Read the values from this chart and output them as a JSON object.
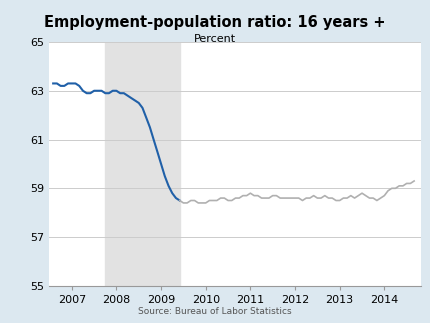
{
  "title": "Employment-population ratio: 16 years +",
  "subtitle": "Percent",
  "source": "Source: Bureau of Labor Statistics",
  "background_color": "#dce8f0",
  "plot_background_color": "#ffffff",
  "recession_start": 2007.75,
  "recession_end": 2009.417,
  "recession_color": "#e2e2e2",
  "ylim": [
    55,
    65
  ],
  "yticks": [
    55,
    57,
    59,
    61,
    63,
    65
  ],
  "xlim": [
    2006.5,
    2014.83
  ],
  "xticks": [
    2007,
    2008,
    2009,
    2010,
    2011,
    2012,
    2013,
    2014
  ],
  "blue_line_color": "#2060a8",
  "gray_line_color": "#b0b0b0",
  "blue_data": {
    "x": [
      2006.583,
      2006.667,
      2006.75,
      2006.833,
      2006.917,
      2007.0,
      2007.083,
      2007.167,
      2007.25,
      2007.333,
      2007.417,
      2007.5,
      2007.583,
      2007.667,
      2007.75,
      2007.833,
      2007.917,
      2008.0,
      2008.083,
      2008.167,
      2008.25,
      2008.333,
      2008.417,
      2008.5,
      2008.583,
      2008.667,
      2008.75,
      2008.833,
      2008.917,
      2009.0,
      2009.083,
      2009.167,
      2009.25,
      2009.333,
      2009.417
    ],
    "y": [
      63.3,
      63.3,
      63.2,
      63.2,
      63.3,
      63.3,
      63.3,
      63.2,
      63.0,
      62.9,
      62.9,
      63.0,
      63.0,
      63.0,
      62.9,
      62.9,
      63.0,
      63.0,
      62.9,
      62.9,
      62.8,
      62.7,
      62.6,
      62.5,
      62.3,
      61.9,
      61.5,
      61.0,
      60.5,
      60.0,
      59.5,
      59.1,
      58.8,
      58.6,
      58.5
    ]
  },
  "gray_data": {
    "x": [
      2009.417,
      2009.5,
      2009.583,
      2009.667,
      2009.75,
      2009.833,
      2009.917,
      2010.0,
      2010.083,
      2010.167,
      2010.25,
      2010.333,
      2010.417,
      2010.5,
      2010.583,
      2010.667,
      2010.75,
      2010.833,
      2010.917,
      2011.0,
      2011.083,
      2011.167,
      2011.25,
      2011.333,
      2011.417,
      2011.5,
      2011.583,
      2011.667,
      2011.75,
      2011.833,
      2011.917,
      2012.0,
      2012.083,
      2012.167,
      2012.25,
      2012.333,
      2012.417,
      2012.5,
      2012.583,
      2012.667,
      2012.75,
      2012.833,
      2012.917,
      2013.0,
      2013.083,
      2013.167,
      2013.25,
      2013.333,
      2013.417,
      2013.5,
      2013.583,
      2013.667,
      2013.75,
      2013.833,
      2013.917,
      2014.0,
      2014.083,
      2014.167,
      2014.25,
      2014.333,
      2014.417,
      2014.5,
      2014.583,
      2014.667
    ],
    "y": [
      58.5,
      58.4,
      58.4,
      58.5,
      58.5,
      58.4,
      58.4,
      58.4,
      58.5,
      58.5,
      58.5,
      58.6,
      58.6,
      58.5,
      58.5,
      58.6,
      58.6,
      58.7,
      58.7,
      58.8,
      58.7,
      58.7,
      58.6,
      58.6,
      58.6,
      58.7,
      58.7,
      58.6,
      58.6,
      58.6,
      58.6,
      58.6,
      58.6,
      58.5,
      58.6,
      58.6,
      58.7,
      58.6,
      58.6,
      58.7,
      58.6,
      58.6,
      58.5,
      58.5,
      58.6,
      58.6,
      58.7,
      58.6,
      58.7,
      58.8,
      58.7,
      58.6,
      58.6,
      58.5,
      58.6,
      58.7,
      58.9,
      59.0,
      59.0,
      59.1,
      59.1,
      59.2,
      59.2,
      59.3
    ]
  }
}
